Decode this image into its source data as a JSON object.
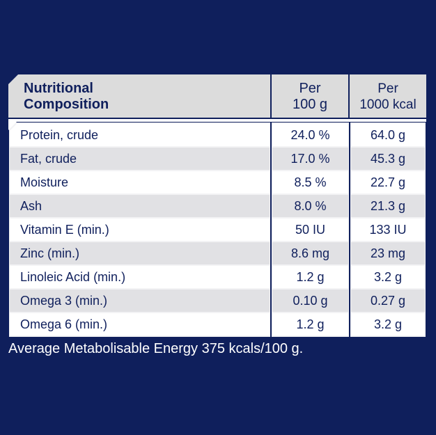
{
  "table": {
    "headers": {
      "nutrient": [
        "Nutritional",
        "Composition"
      ],
      "per_100g": [
        "Per",
        "100 g"
      ],
      "per_1000kcal": [
        "Per",
        "1000 kcal"
      ]
    },
    "rows": [
      {
        "name": "Protein, crude",
        "per_100g": "24.0 %",
        "per_1000kcal": "64.0 g"
      },
      {
        "name": "Fat, crude",
        "per_100g": "17.0 %",
        "per_1000kcal": "45.3 g"
      },
      {
        "name": "Moisture",
        "per_100g": "8.5 %",
        "per_1000kcal": "22.7 g"
      },
      {
        "name": "Ash",
        "per_100g": "8.0 %",
        "per_1000kcal": "21.3 g"
      },
      {
        "name": "Vitamin E (min.)",
        "per_100g": "50 IU",
        "per_1000kcal": "133 IU"
      },
      {
        "name": "Zinc (min.)",
        "per_100g": "8.6 mg",
        "per_1000kcal": "23 mg"
      },
      {
        "name": "Linoleic Acid (min.)",
        "per_100g": "1.2 g",
        "per_1000kcal": "3.2 g"
      },
      {
        "name": "Omega 3 (min.)",
        "per_100g": "0.10 g",
        "per_1000kcal": "0.27 g"
      },
      {
        "name": "Omega 6 (min.)",
        "per_100g": "1.2 g",
        "per_1000kcal": "3.2 g"
      }
    ]
  },
  "footer": {
    "note": "Average Metabolisable Energy 375 kcals/100 g."
  },
  "colors": {
    "background": "#0f1f5c",
    "header_cell": "#dcdcdc",
    "row_alt": "#e1e1e4",
    "text": "#0f1f5c"
  }
}
